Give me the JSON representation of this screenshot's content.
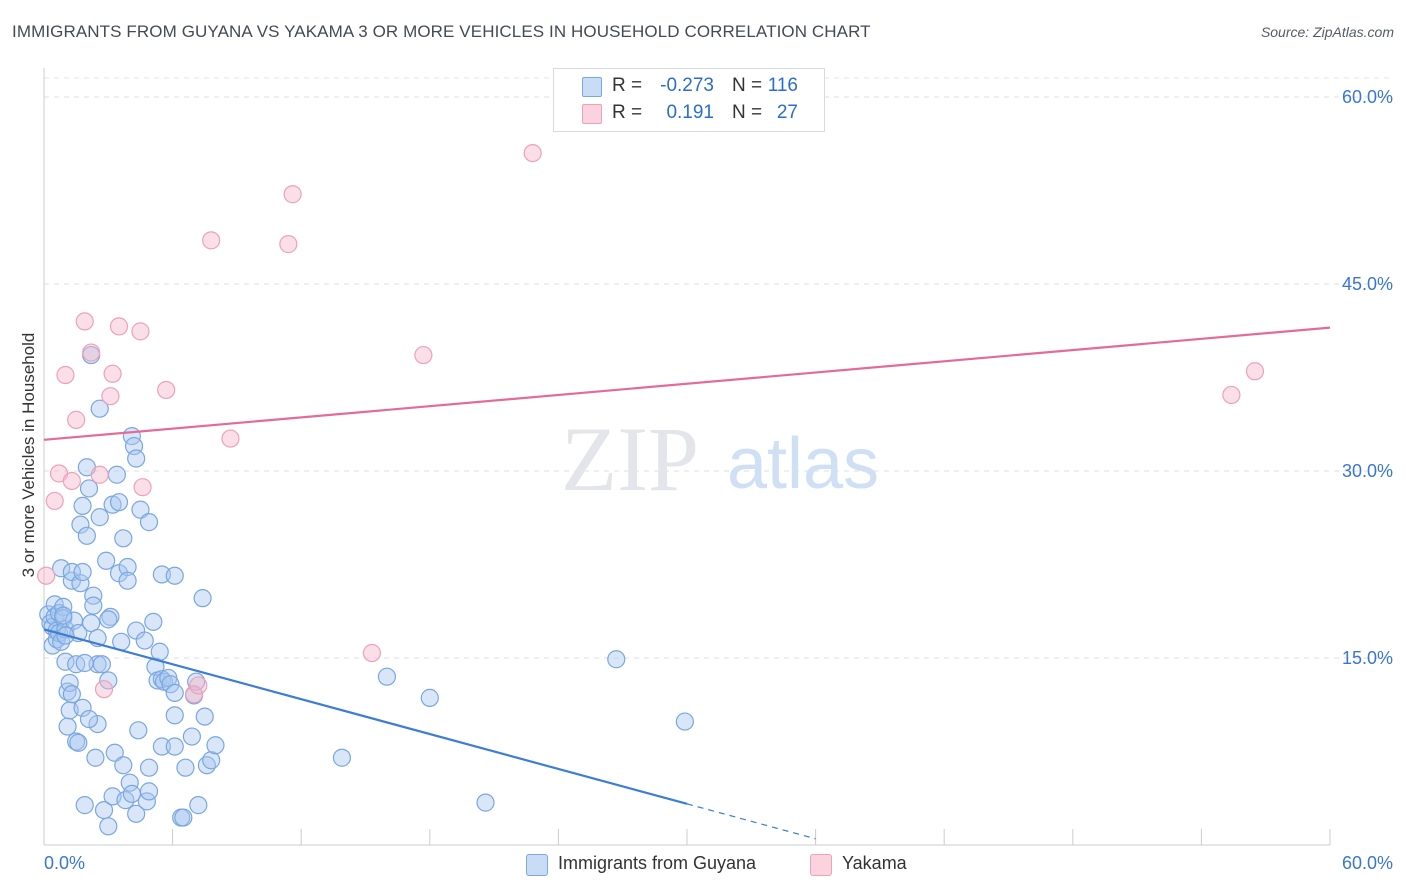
{
  "header": {
    "title": "IMMIGRANTS FROM GUYANA VS YAKAMA 3 OR MORE VEHICLES IN HOUSEHOLD CORRELATION CHART",
    "source": "Source: ZipAtlas.com"
  },
  "watermark": {
    "zip": "ZIP",
    "atlas": "atlas"
  },
  "legend_top": {
    "rows": [
      {
        "r_label": "R = ",
        "r_value": "-0.273",
        "n_label": "N = ",
        "n_value": "116",
        "color": "#a9c8f0"
      },
      {
        "r_label": "R = ",
        "r_value": "0.191",
        "n_label": "N = ",
        "n_value": "27",
        "color": "#f7b9cb"
      }
    ]
  },
  "legend_bottom": {
    "items": [
      {
        "label": "Immigrants from Guyana",
        "color": "#a9c8f0"
      },
      {
        "label": "Yakama",
        "color": "#f7b9cb"
      }
    ]
  },
  "chart_data": {
    "type": "scatter",
    "title": "IMMIGRANTS FROM GUYANA VS YAKAMA 3 OR MORE VEHICLES IN HOUSEHOLD CORRELATION CHART",
    "xlabel": "",
    "ylabel": "3 or more Vehicles in Household",
    "xlim": [
      0,
      60
    ],
    "ylim": [
      0,
      60
    ],
    "x_tick_labels": [
      "0.0%",
      "60.0%"
    ],
    "y_tick_labels": [
      "15.0%",
      "30.0%",
      "45.0%",
      "60.0%"
    ],
    "y_ticks": [
      15,
      30,
      45,
      60
    ],
    "grid": true,
    "legend_position": "bottom",
    "colors": {
      "guyana": "#3d7dd6",
      "guyana_fill": "#a9c8f0",
      "yakama": "#e46b97",
      "yakama_fill": "#f7b9cb"
    },
    "series": [
      {
        "name": "Immigrants from Guyana",
        "trend": {
          "x": [
            0,
            30
          ],
          "y": [
            17.3,
            3.3
          ],
          "dashed_to": [
            36,
            0.5
          ]
        },
        "points": [
          [
            0.2,
            18.5
          ],
          [
            0.3,
            17.8
          ],
          [
            0.4,
            16.0
          ],
          [
            0.4,
            17.5
          ],
          [
            0.5,
            19.3
          ],
          [
            0.5,
            18.3
          ],
          [
            0.6,
            17.2
          ],
          [
            0.6,
            16.5
          ],
          [
            0.7,
            18.6
          ],
          [
            0.7,
            17.0
          ],
          [
            0.8,
            16.3
          ],
          [
            0.8,
            22.2
          ],
          [
            0.9,
            19.1
          ],
          [
            0.9,
            18.2
          ],
          [
            1.0,
            17.3
          ],
          [
            1.0,
            14.7
          ],
          [
            1.1,
            12.3
          ],
          [
            1.1,
            9.5
          ],
          [
            1.2,
            10.8
          ],
          [
            1.2,
            13.0
          ],
          [
            1.3,
            21.2
          ],
          [
            1.3,
            21.9
          ],
          [
            1.4,
            18.0
          ],
          [
            1.5,
            14.5
          ],
          [
            1.5,
            8.3
          ],
          [
            1.6,
            8.2
          ],
          [
            1.6,
            17.0
          ],
          [
            1.7,
            25.7
          ],
          [
            1.7,
            21.0
          ],
          [
            1.8,
            27.2
          ],
          [
            1.8,
            21.9
          ],
          [
            1.8,
            11.0
          ],
          [
            1.9,
            3.2
          ],
          [
            2.0,
            24.8
          ],
          [
            2.0,
            30.3
          ],
          [
            2.1,
            28.6
          ],
          [
            2.2,
            39.3
          ],
          [
            2.2,
            17.8
          ],
          [
            2.3,
            20.0
          ],
          [
            2.3,
            19.2
          ],
          [
            2.4,
            7.0
          ],
          [
            2.5,
            16.6
          ],
          [
            2.5,
            14.5
          ],
          [
            2.5,
            9.7
          ],
          [
            2.6,
            35.0
          ],
          [
            2.6,
            26.3
          ],
          [
            2.7,
            14.5
          ],
          [
            2.8,
            2.8
          ],
          [
            2.9,
            22.8
          ],
          [
            3.0,
            13.2
          ],
          [
            3.0,
            1.5
          ],
          [
            3.1,
            18.3
          ],
          [
            3.2,
            27.3
          ],
          [
            3.2,
            3.9
          ],
          [
            3.3,
            7.4
          ],
          [
            3.4,
            29.7
          ],
          [
            3.5,
            21.8
          ],
          [
            3.5,
            27.5
          ],
          [
            3.6,
            16.3
          ],
          [
            3.7,
            6.4
          ],
          [
            3.7,
            24.6
          ],
          [
            3.8,
            3.6
          ],
          [
            3.9,
            22.3
          ],
          [
            3.9,
            21.2
          ],
          [
            4.0,
            5.0
          ],
          [
            4.1,
            4.1
          ],
          [
            4.1,
            32.8
          ],
          [
            4.2,
            32.0
          ],
          [
            4.3,
            31.0
          ],
          [
            4.3,
            17.2
          ],
          [
            4.3,
            2.5
          ],
          [
            4.4,
            9.2
          ],
          [
            4.5,
            26.9
          ],
          [
            4.7,
            16.4
          ],
          [
            4.8,
            3.5
          ],
          [
            4.9,
            6.2
          ],
          [
            4.9,
            4.3
          ],
          [
            4.9,
            25.9
          ],
          [
            5.1,
            17.9
          ],
          [
            5.2,
            14.3
          ],
          [
            5.3,
            13.2
          ],
          [
            5.5,
            13.3
          ],
          [
            5.5,
            7.9
          ],
          [
            5.5,
            21.7
          ],
          [
            5.6,
            13.1
          ],
          [
            5.8,
            13.4
          ],
          [
            5.9,
            12.9
          ],
          [
            6.1,
            12.2
          ],
          [
            6.1,
            10.4
          ],
          [
            6.1,
            21.6
          ],
          [
            6.1,
            7.9
          ],
          [
            6.4,
            2.2
          ],
          [
            6.5,
            2.2
          ],
          [
            6.6,
            6.2
          ],
          [
            6.9,
            8.7
          ],
          [
            7.0,
            12.0
          ],
          [
            7.1,
            13.1
          ],
          [
            7.2,
            3.2
          ],
          [
            7.4,
            19.8
          ],
          [
            7.5,
            10.3
          ],
          [
            7.6,
            6.4
          ],
          [
            7.8,
            6.8
          ],
          [
            8.0,
            8.0
          ],
          [
            13.9,
            7.0
          ],
          [
            16.0,
            13.5
          ],
          [
            18.0,
            11.8
          ],
          [
            20.6,
            3.4
          ],
          [
            26.7,
            14.9
          ],
          [
            29.9,
            9.9
          ],
          [
            0.9,
            18.4
          ],
          [
            1.0,
            16.8
          ],
          [
            1.9,
            14.6
          ],
          [
            2.1,
            10.1
          ],
          [
            1.3,
            12.1
          ],
          [
            3.0,
            18.1
          ],
          [
            5.4,
            15.5
          ]
        ]
      },
      {
        "name": "Yakama",
        "trend": {
          "x": [
            0,
            60
          ],
          "y": [
            32.5,
            41.5
          ]
        },
        "points": [
          [
            0.1,
            21.6
          ],
          [
            0.5,
            27.6
          ],
          [
            0.7,
            29.8
          ],
          [
            1.0,
            37.7
          ],
          [
            1.3,
            29.2
          ],
          [
            1.5,
            34.1
          ],
          [
            1.9,
            42.0
          ],
          [
            2.2,
            39.5
          ],
          [
            2.6,
            29.7
          ],
          [
            2.8,
            12.5
          ],
          [
            3.1,
            36.0
          ],
          [
            3.2,
            37.8
          ],
          [
            3.5,
            41.6
          ],
          [
            4.5,
            41.2
          ],
          [
            4.6,
            28.7
          ],
          [
            5.7,
            36.5
          ],
          [
            7.0,
            12.1
          ],
          [
            7.2,
            12.8
          ],
          [
            7.8,
            48.5
          ],
          [
            8.7,
            32.6
          ],
          [
            11.4,
            48.2
          ],
          [
            11.6,
            52.2
          ],
          [
            15.3,
            15.4
          ],
          [
            17.7,
            39.3
          ],
          [
            22.8,
            55.5
          ],
          [
            55.4,
            36.1
          ],
          [
            56.5,
            38.0
          ]
        ]
      }
    ]
  }
}
